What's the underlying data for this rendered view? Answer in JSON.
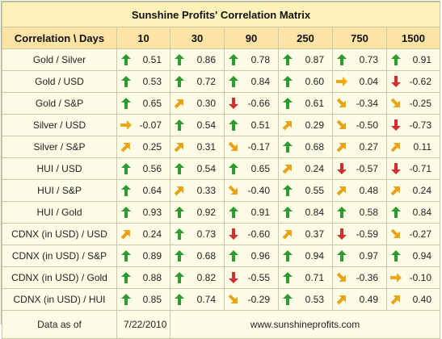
{
  "title": "Sunshine Profits' Correlation Matrix",
  "header": {
    "label": "Correlation \\ Days",
    "columns": [
      "10",
      "30",
      "90",
      "250",
      "750",
      "1500"
    ]
  },
  "colors": {
    "up": "#2f9a2f",
    "up_right": "#e8a317",
    "right": "#f0a818",
    "down_right": "#e8a317",
    "down": "#d23030"
  },
  "rows": [
    {
      "label": "Gold / Silver",
      "cells": [
        {
          "v": "0.51",
          "d": "up"
        },
        {
          "v": "0.86",
          "d": "up"
        },
        {
          "v": "0.78",
          "d": "up"
        },
        {
          "v": "0.87",
          "d": "up"
        },
        {
          "v": "0.73",
          "d": "up"
        },
        {
          "v": "0.91",
          "d": "up"
        }
      ]
    },
    {
      "label": "Gold / USD",
      "cells": [
        {
          "v": "0.53",
          "d": "up"
        },
        {
          "v": "0.72",
          "d": "up"
        },
        {
          "v": "0.84",
          "d": "up"
        },
        {
          "v": "0.60",
          "d": "up"
        },
        {
          "v": "0.04",
          "d": "right"
        },
        {
          "v": "-0.62",
          "d": "down"
        }
      ]
    },
    {
      "label": "Gold / S&P",
      "cells": [
        {
          "v": "0.65",
          "d": "up"
        },
        {
          "v": "0.30",
          "d": "up-right"
        },
        {
          "v": "-0.66",
          "d": "down"
        },
        {
          "v": "0.61",
          "d": "up"
        },
        {
          "v": "-0.34",
          "d": "down-right"
        },
        {
          "v": "-0.25",
          "d": "down-right"
        }
      ]
    },
    {
      "label": "Silver / USD",
      "cells": [
        {
          "v": "-0.07",
          "d": "right"
        },
        {
          "v": "0.54",
          "d": "up"
        },
        {
          "v": "0.51",
          "d": "up"
        },
        {
          "v": "0.29",
          "d": "up-right"
        },
        {
          "v": "-0.50",
          "d": "down-right"
        },
        {
          "v": "-0.73",
          "d": "down"
        }
      ]
    },
    {
      "label": "Silver / S&P",
      "cells": [
        {
          "v": "0.25",
          "d": "up-right"
        },
        {
          "v": "0.31",
          "d": "up-right"
        },
        {
          "v": "-0.17",
          "d": "down-right"
        },
        {
          "v": "0.68",
          "d": "up"
        },
        {
          "v": "0.27",
          "d": "up-right"
        },
        {
          "v": "0.11",
          "d": "up-right"
        }
      ]
    },
    {
      "label": "HUI / USD",
      "cells": [
        {
          "v": "0.56",
          "d": "up"
        },
        {
          "v": "0.54",
          "d": "up"
        },
        {
          "v": "0.65",
          "d": "up"
        },
        {
          "v": "0.24",
          "d": "up-right"
        },
        {
          "v": "-0.57",
          "d": "down"
        },
        {
          "v": "-0.71",
          "d": "down"
        }
      ]
    },
    {
      "label": "HUI / S&P",
      "cells": [
        {
          "v": "0.64",
          "d": "up"
        },
        {
          "v": "0.33",
          "d": "up-right"
        },
        {
          "v": "-0.40",
          "d": "down-right"
        },
        {
          "v": "0.55",
          "d": "up"
        },
        {
          "v": "0.48",
          "d": "up-right"
        },
        {
          "v": "0.24",
          "d": "up-right"
        }
      ]
    },
    {
      "label": "HUI / Gold",
      "cells": [
        {
          "v": "0.93",
          "d": "up"
        },
        {
          "v": "0.92",
          "d": "up"
        },
        {
          "v": "0.91",
          "d": "up"
        },
        {
          "v": "0.84",
          "d": "up"
        },
        {
          "v": "0.58",
          "d": "up"
        },
        {
          "v": "0.84",
          "d": "up"
        }
      ]
    },
    {
      "label": "CDNX (in USD) / USD",
      "cells": [
        {
          "v": "0.24",
          "d": "up-right"
        },
        {
          "v": "0.73",
          "d": "up"
        },
        {
          "v": "-0.60",
          "d": "down"
        },
        {
          "v": "0.37",
          "d": "up-right"
        },
        {
          "v": "-0.59",
          "d": "down"
        },
        {
          "v": "-0.27",
          "d": "down-right"
        }
      ]
    },
    {
      "label": "CDNX (in USD) / S&P",
      "cells": [
        {
          "v": "0.89",
          "d": "up"
        },
        {
          "v": "0.68",
          "d": "up"
        },
        {
          "v": "0.96",
          "d": "up"
        },
        {
          "v": "0.94",
          "d": "up"
        },
        {
          "v": "0.97",
          "d": "up"
        },
        {
          "v": "0.94",
          "d": "up"
        }
      ]
    },
    {
      "label": "CDNX (in USD) / Gold",
      "cells": [
        {
          "v": "0.88",
          "d": "up"
        },
        {
          "v": "0.82",
          "d": "up"
        },
        {
          "v": "-0.55",
          "d": "down"
        },
        {
          "v": "0.71",
          "d": "up"
        },
        {
          "v": "-0.36",
          "d": "down-right"
        },
        {
          "v": "-0.10",
          "d": "right"
        }
      ]
    },
    {
      "label": "CDNX (in USD) / HUI",
      "cells": [
        {
          "v": "0.85",
          "d": "up"
        },
        {
          "v": "0.74",
          "d": "up"
        },
        {
          "v": "-0.29",
          "d": "down-right"
        },
        {
          "v": "0.53",
          "d": "up"
        },
        {
          "v": "0.49",
          "d": "up-right"
        },
        {
          "v": "0.40",
          "d": "up-right"
        }
      ]
    }
  ],
  "footer": {
    "data_as_of_label": "Data as of",
    "date": "7/22/2010",
    "website": "www.sunshineprofits.com"
  }
}
